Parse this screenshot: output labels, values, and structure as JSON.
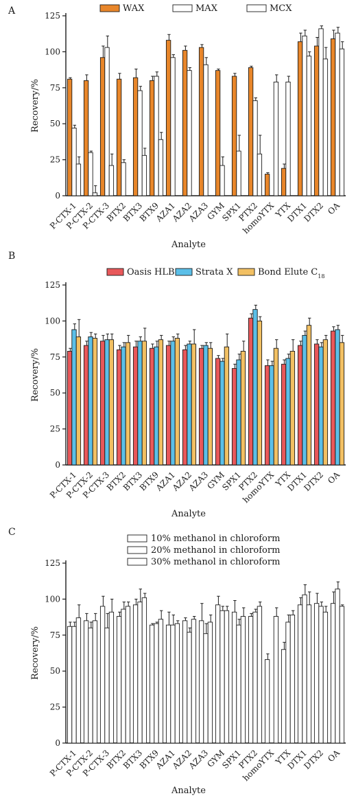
{
  "chart_data": [
    {
      "type": "bar",
      "panel_label": "A",
      "xlabel": "Analyte",
      "ylabel": "Recovery/%",
      "ylim": [
        0,
        125
      ],
      "yticks": [
        0,
        25,
        50,
        75,
        100,
        125
      ],
      "categories": [
        "P-CTX-1",
        "P-CTX-2",
        "P-CTX-3",
        "BTX2",
        "BTX3",
        "BTX9",
        "AZA1",
        "AZA2",
        "AZA3",
        "GYM",
        "SPX1",
        "PTX2",
        "homoYTX",
        "YTX",
        "DTX1",
        "DTX2",
        "OA"
      ],
      "legend_position": "top",
      "series": [
        {
          "name": "WAX",
          "color": "#e8862a",
          "values": [
            81,
            80,
            96,
            81,
            82,
            80,
            108,
            101,
            103,
            87,
            83,
            89,
            15,
            19,
            107,
            104,
            109
          ],
          "errors": [
            1,
            4,
            8,
            4,
            6,
            3,
            4,
            3,
            2,
            1,
            2,
            1,
            1,
            3,
            6,
            6,
            6
          ]
        },
        {
          "name": "MAX",
          "color": "#ffffff",
          "values": [
            47,
            30,
            103,
            23,
            73,
            83,
            96,
            87,
            91,
            21,
            31,
            66,
            null,
            79,
            111,
            116,
            113
          ],
          "errors": [
            2,
            1,
            8,
            2,
            3,
            3,
            2,
            2,
            5,
            6,
            11,
            2,
            null,
            4,
            4,
            2,
            4
          ]
        },
        {
          "name": "MCX",
          "color": "#ffffff",
          "values": [
            22,
            2,
            21,
            null,
            28,
            39,
            null,
            null,
            null,
            null,
            null,
            29,
            79,
            null,
            97,
            95,
            102
          ],
          "errors": [
            5,
            5,
            8,
            null,
            5,
            5,
            null,
            null,
            null,
            null,
            null,
            13,
            5,
            null,
            3,
            8,
            5
          ]
        }
      ]
    },
    {
      "type": "bar",
      "panel_label": "B",
      "xlabel": "Analyte",
      "ylabel": "Recovery/%",
      "ylim": [
        0,
        125
      ],
      "yticks": [
        0,
        25,
        50,
        75,
        100,
        125
      ],
      "categories": [
        "P-CTX-1",
        "P-CTX-2",
        "P-CTX-3",
        "BTX2",
        "BTX3",
        "BTX9",
        "AZA1",
        "AZA2",
        "AZA3",
        "GYM",
        "SPX1",
        "PTX2",
        "homoYTX",
        "YTX",
        "DTX1",
        "DTX2",
        "OA"
      ],
      "legend_position": "top",
      "series": [
        {
          "name": "Oasis HLB",
          "name_sub": "",
          "color": "#e8585a",
          "values": [
            79,
            83,
            86,
            80,
            82,
            81,
            83,
            80,
            81,
            74,
            67,
            102,
            69,
            70,
            83,
            84,
            93
          ],
          "errors": [
            2,
            3,
            4,
            3,
            4,
            3,
            3,
            3,
            2,
            2,
            3,
            3,
            4,
            3,
            3,
            3,
            3
          ]
        },
        {
          "name": "Strata X",
          "name_sub": "",
          "color": "#5bbfe8",
          "values": [
            94,
            89,
            87,
            82,
            86,
            82,
            86,
            84,
            83,
            72,
            73,
            108,
            69,
            74,
            90,
            82,
            94
          ],
          "errors": [
            4,
            3,
            4,
            3,
            3,
            4,
            3,
            2,
            2,
            2,
            4,
            3,
            3,
            3,
            3,
            3,
            3
          ]
        },
        {
          "name": "Bond Elute C",
          "name_sub": "18",
          "color": "#f2c063",
          "values": [
            89,
            88,
            87,
            85,
            86,
            87,
            88,
            84,
            81,
            82,
            79,
            100,
            81,
            79,
            97,
            87,
            85
          ],
          "errors": [
            12,
            3,
            4,
            5,
            9,
            3,
            3,
            10,
            4,
            9,
            7,
            3,
            6,
            8,
            5,
            3,
            5
          ]
        }
      ]
    },
    {
      "type": "bar",
      "panel_label": "C",
      "xlabel": "Analyte",
      "ylabel": "Recovery/%",
      "ylim": [
        0,
        125
      ],
      "yticks": [
        0,
        25,
        50,
        75,
        100,
        125
      ],
      "categories": [
        "P-CTX-1",
        "P-CTX-2",
        "P-CTX-3",
        "BTX2",
        "BTX3",
        "BTX9",
        "AZA1",
        "AZA2",
        "AZA3",
        "GYM",
        "SPX1",
        "PTX2",
        "homoYTX",
        "YTX",
        "DTX1",
        "DTX2",
        "OA"
      ],
      "legend_position": "top",
      "series": [
        {
          "name": "10% methanol in chloroform",
          "color": "#ffffff",
          "values": [
            81,
            85,
            95,
            88,
            96,
            82,
            82,
            85,
            85,
            96,
            91,
            88,
            58,
            65,
            96,
            97,
            97
          ],
          "errors": [
            3,
            5,
            7,
            3,
            4,
            1,
            9,
            2,
            12,
            6,
            8,
            2,
            4,
            5,
            5,
            7,
            8
          ]
        },
        {
          "name": "20% methanol in chloroform",
          "color": "#ffffff",
          "values": [
            81,
            80,
            80,
            93,
            98,
            83,
            82,
            77,
            76,
            92,
            82,
            91,
            null,
            84,
            103,
            95,
            107
          ],
          "errors": [
            3,
            4,
            10,
            5,
            9,
            1,
            7,
            3,
            7,
            3,
            4,
            2,
            null,
            5,
            7,
            3,
            5
          ]
        },
        {
          "name": "30% methanol in chloroform",
          "color": "#ffffff",
          "values": [
            87,
            85,
            91,
            95,
            101,
            86,
            83,
            86,
            84,
            92,
            88,
            95,
            88,
            89,
            96,
            91,
            95
          ],
          "errors": [
            9,
            5,
            9,
            3,
            3,
            6,
            2,
            2,
            5,
            3,
            6,
            3,
            6,
            3,
            9,
            4,
            1
          ]
        }
      ]
    }
  ]
}
